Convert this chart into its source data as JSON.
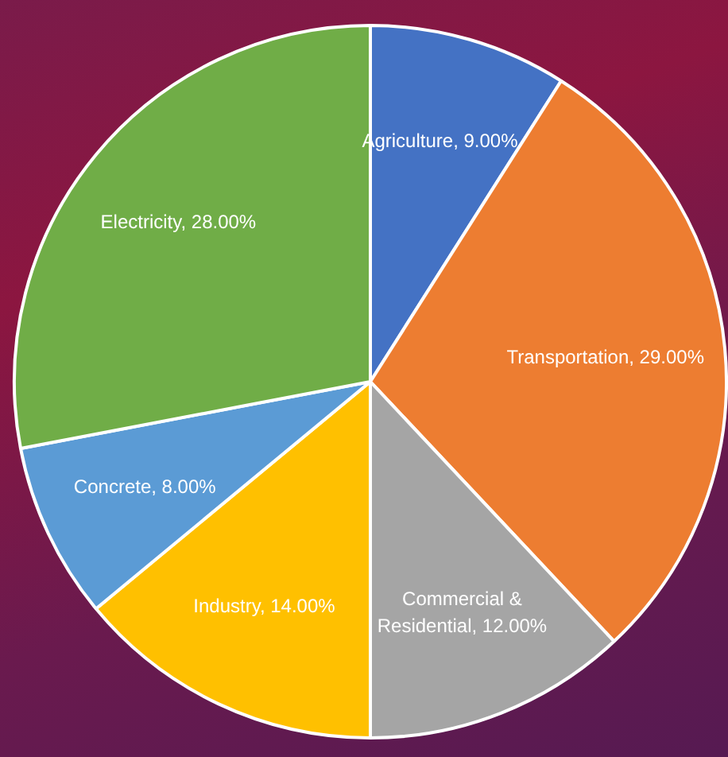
{
  "chart_data": {
    "type": "pie",
    "categories": [
      "Agriculture",
      "Transportation",
      "Commercial & Residential",
      "Industry",
      "Concrete",
      "Electricity"
    ],
    "values": [
      9,
      29,
      12,
      14,
      8,
      28
    ],
    "value_labels": [
      "9.00%",
      "29.00%",
      "12.00%",
      "14.00%",
      "8.00%",
      "28.00%"
    ],
    "colors": [
      "#4472c4",
      "#ed7d31",
      "#a5a5a5",
      "#ffc000",
      "#5b9bd5",
      "#70ad47"
    ],
    "legend": false
  }
}
